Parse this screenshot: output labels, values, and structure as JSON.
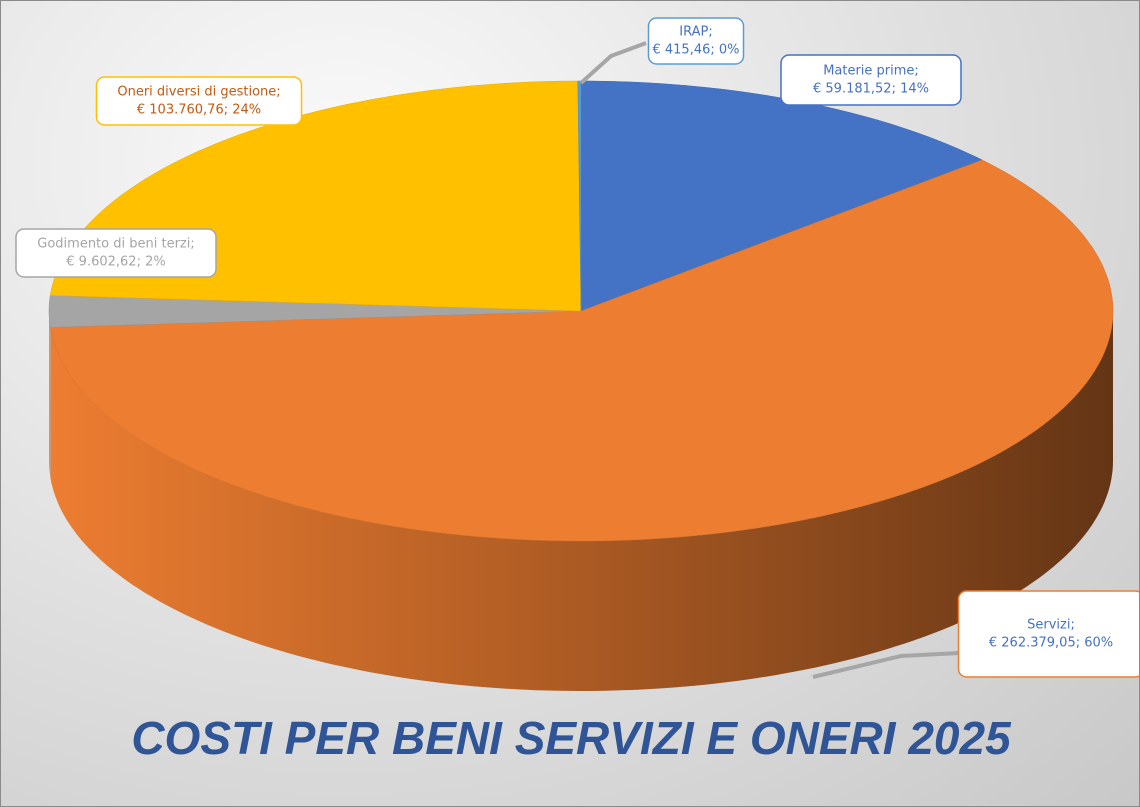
{
  "chart_data": {
    "type": "pie",
    "title": "COSTI PER BENI SERVIZI E ONERI 2025",
    "categories": [
      "Materie prime;",
      "Servizi;",
      "Godimento di beni terzi;",
      "Oneri diversi di gestione;",
      "IRAP;"
    ],
    "values": [
      59181.52,
      262379.05,
      9602.62,
      103760.76,
      415.46
    ],
    "value_labels": [
      "€ 59.181,52; 14%",
      "€ 262.379,05; 60%",
      "€ 9.602,62; 2%",
      "€ 103.760,76; 24%",
      "€ 415,46; 0%"
    ],
    "colors": [
      "#4472c4",
      "#ed7d31",
      "#a5a5a5",
      "#ffc000",
      "#5b9bd5"
    ]
  }
}
